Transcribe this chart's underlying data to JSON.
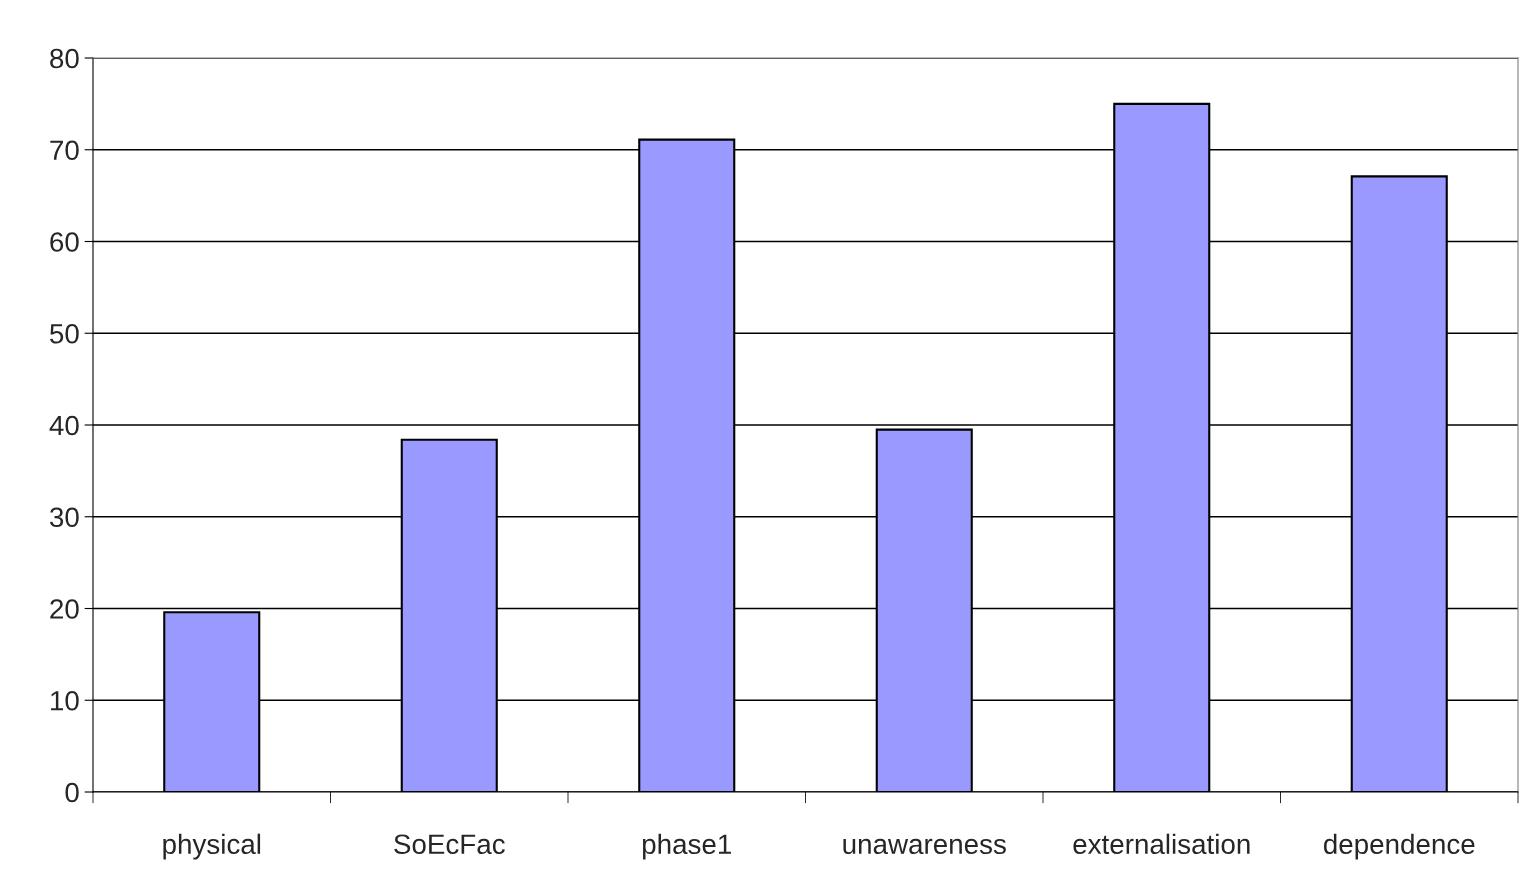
{
  "chart_data": {
    "type": "bar",
    "categories": [
      "physical",
      "SoEcFac",
      "phase1",
      "unawareness",
      "externalisation",
      "dependence"
    ],
    "values": [
      19.6,
      38.4,
      71.1,
      39.5,
      75.0,
      67.1
    ],
    "color": "#9999ff",
    "ylim": [
      0,
      80
    ],
    "yticks": [
      0,
      10,
      20,
      30,
      40,
      50,
      60,
      70,
      80
    ],
    "grid": "y",
    "legend": false
  }
}
